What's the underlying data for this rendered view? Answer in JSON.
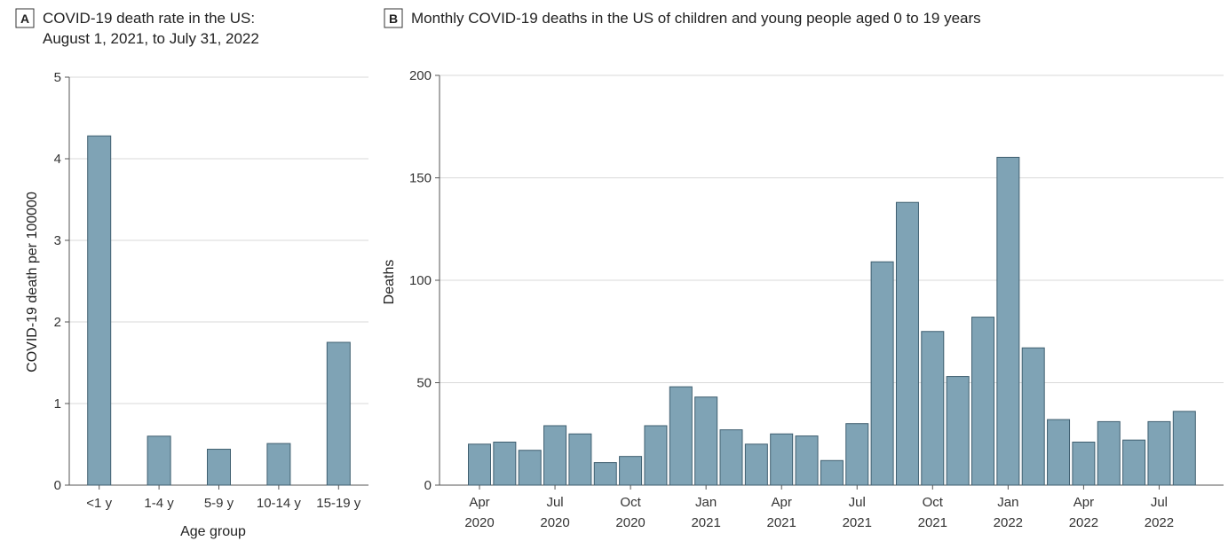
{
  "chart_data": [
    {
      "panel_label": "A",
      "type": "bar",
      "title_lines": [
        "COVID-19 death rate in the US:",
        "August 1, 2021, to July 31, 2022"
      ],
      "xlabel": "Age group",
      "ylabel": "COVID-19 death per 100000",
      "categories": [
        "<1 y",
        "1-4 y",
        "5-9 y",
        "10-14 y",
        "15-19 y"
      ],
      "values": [
        4.28,
        0.6,
        0.44,
        0.51,
        1.75
      ],
      "ylim": [
        0,
        5
      ],
      "yticks": [
        "0",
        "1",
        "2",
        "3",
        "4",
        "5"
      ],
      "grid": true,
      "color": "#7fa3b5"
    },
    {
      "panel_label": "B",
      "type": "bar",
      "title": "Monthly COVID-19 deaths in the US of children and young people aged 0 to 19 years",
      "xlabel": "",
      "ylabel": "Deaths",
      "categories": [
        "Apr 2020",
        "May 2020",
        "Jun 2020",
        "Jul 2020",
        "Aug 2020",
        "Sep 2020",
        "Oct 2020",
        "Nov 2020",
        "Dec 2020",
        "Jan 2021",
        "Feb 2021",
        "Mar 2021",
        "Apr 2021",
        "May 2021",
        "Jun 2021",
        "Jul 2021",
        "Aug 2021",
        "Sep 2021",
        "Oct 2021",
        "Nov 2021",
        "Dec 2021",
        "Jan 2022",
        "Feb 2022",
        "Mar 2022",
        "Apr 2022",
        "May 2022",
        "Jun 2022",
        "Jul 2022",
        "Aug 2022"
      ],
      "values": [
        20,
        21,
        17,
        29,
        25,
        11,
        14,
        29,
        48,
        43,
        27,
        20,
        25,
        24,
        12,
        30,
        109,
        138,
        75,
        53,
        82,
        160,
        67,
        32,
        21,
        31,
        22,
        31,
        36
      ],
      "ylim": [
        0,
        200
      ],
      "yticks": [
        "0",
        "50",
        "100",
        "150",
        "200"
      ],
      "xtick_labels": [
        {
          "index": 0,
          "month": "Apr",
          "year": "2020"
        },
        {
          "index": 3,
          "month": "Jul",
          "year": "2020"
        },
        {
          "index": 6,
          "month": "Oct",
          "year": "2020"
        },
        {
          "index": 9,
          "month": "Jan",
          "year": "2021"
        },
        {
          "index": 12,
          "month": "Apr",
          "year": "2021"
        },
        {
          "index": 15,
          "month": "Jul",
          "year": "2021"
        },
        {
          "index": 18,
          "month": "Oct",
          "year": "2021"
        },
        {
          "index": 21,
          "month": "Jan",
          "year": "2022"
        },
        {
          "index": 24,
          "month": "Apr",
          "year": "2022"
        },
        {
          "index": 27,
          "month": "Jul",
          "year": "2022"
        }
      ],
      "grid": true,
      "color": "#7fa3b5"
    }
  ]
}
